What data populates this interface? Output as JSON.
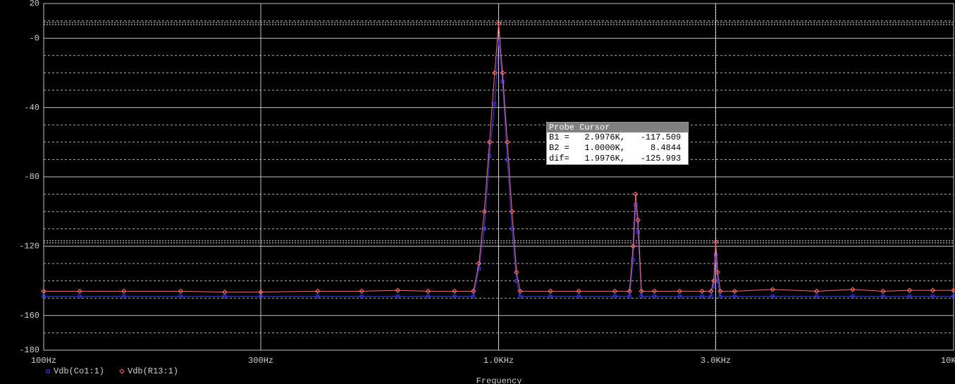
{
  "chart_data": {
    "type": "line",
    "xlabel": "Frequency",
    "log_x": true,
    "grid": true,
    "xlim": [
      100,
      10000
    ],
    "xticks": [
      {
        "value": 100,
        "label": "100Hz"
      },
      {
        "value": 300,
        "label": "300Hz"
      },
      {
        "value": 1000,
        "label": "1.0KHz"
      },
      {
        "value": 3000,
        "label": "3.0KHz"
      },
      {
        "value": 10000,
        "label": "10KHz"
      }
    ],
    "ylim": [
      -180,
      20
    ],
    "yticks": [
      20,
      {
        "value": 0,
        "label": "-0"
      },
      -40,
      -80,
      -120,
      -160,
      -180
    ],
    "yminor": [
      10,
      -10,
      -20,
      -30,
      -50,
      -60,
      -70,
      -90,
      -100,
      -110,
      -130,
      -140,
      -150,
      -170
    ],
    "x": [
      100,
      120,
      150,
      200,
      250,
      300,
      400,
      500,
      600,
      700,
      800,
      880,
      905,
      930,
      955,
      980,
      1000,
      1020,
      1045,
      1070,
      1095,
      1115,
      1300,
      1500,
      1800,
      1940,
      1975,
      2000,
      2025,
      2060,
      2200,
      2500,
      2800,
      2930,
      2970,
      3000,
      3030,
      3070,
      3300,
      4000,
      5000,
      6000,
      7000,
      8000,
      9000,
      10000
    ],
    "series": [
      {
        "name": "Vdb(Co1:1)",
        "color": "#4040ff",
        "marker": "square",
        "values": [
          -149,
          -149,
          -149,
          -149,
          -149,
          -149,
          -149,
          -149,
          -149,
          -149,
          -149,
          -149,
          -133,
          -110,
          -68,
          -38,
          -1,
          -25,
          -70,
          -110,
          -140,
          -149,
          -149,
          -149,
          -149,
          -149,
          -128,
          -96,
          -112,
          -149,
          -149,
          -149,
          -149,
          -149,
          -143,
          -125,
          -140,
          -149,
          -149,
          -149,
          -149,
          -149,
          -149,
          -149,
          -149,
          -149
        ]
      },
      {
        "name": "Vdb(R13:1)",
        "color": "#ff7070",
        "marker": "diamond",
        "values": [
          -146,
          -146,
          -146,
          -146,
          -146.5,
          -146.5,
          -146,
          -146,
          -145.5,
          -146,
          -146,
          -146,
          -130,
          -100,
          -60,
          -20,
          8.5,
          -20,
          -60,
          -100,
          -135,
          -146,
          -146,
          -146,
          -146,
          -146,
          -120,
          -90,
          -105,
          -146,
          -146,
          -146,
          -146,
          -146,
          -140,
          -117.5,
          -135,
          -146,
          -146,
          -145,
          -146,
          -145,
          -146,
          -145.5,
          -145.5,
          -145.5
        ]
      }
    ],
    "cursors": [
      {
        "x": 1000,
        "y": 8.4844
      },
      {
        "x": 2997.6,
        "y": -117.509
      }
    ],
    "probe_cursor": {
      "title": "Probe Cursor",
      "lines": [
        "B1 =   2.9976K,   -117.509",
        "B2 =   1.0000K,     8.4844",
        "dif=   1.9976K,   -125.993"
      ]
    }
  }
}
